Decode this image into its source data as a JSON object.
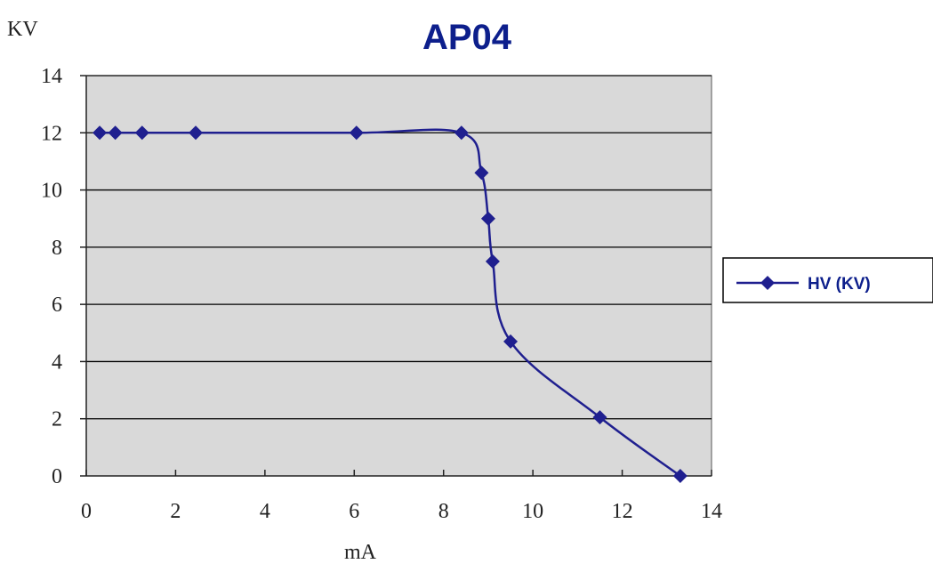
{
  "chart_data": {
    "type": "line",
    "title": "AP04",
    "xlabel": "mA",
    "ylabel": "KV",
    "xlim": [
      0,
      14
    ],
    "ylim": [
      0,
      14
    ],
    "x_ticks": [
      0,
      2,
      4,
      6,
      8,
      10,
      12,
      14
    ],
    "y_ticks": [
      0,
      2,
      4,
      6,
      8,
      10,
      12,
      14
    ],
    "grid": "horizontal",
    "legend": "right",
    "plot_background": "#d9d9d9",
    "series": [
      {
        "name": "HV (KV)",
        "color": "#1f1f8f",
        "marker": "diamond",
        "x": [
          0.3,
          0.65,
          1.25,
          2.45,
          6.05,
          8.4,
          8.85,
          9.0,
          9.1,
          9.5,
          11.5,
          13.3
        ],
        "y": [
          12,
          12,
          12,
          12,
          12,
          12,
          10.6,
          9.0,
          7.5,
          4.7,
          2.05,
          0
        ]
      }
    ]
  }
}
